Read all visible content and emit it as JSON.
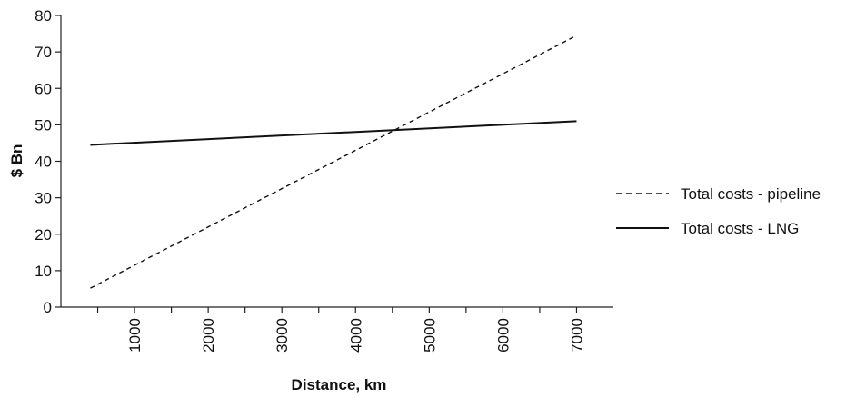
{
  "chart_data": {
    "type": "line",
    "xlabel": "Distance, km",
    "ylabel": "$ Bn",
    "xlim": [
      400,
      7000
    ],
    "ylim": [
      0,
      80
    ],
    "xticks": [
      1000,
      2000,
      3000,
      4000,
      5000,
      6000,
      7000
    ],
    "xtick_labels": [
      "1000",
      "2000",
      "3000",
      "4000",
      "5000",
      "6000",
      "7000"
    ],
    "yticks": [
      0,
      10,
      20,
      30,
      40,
      50,
      60,
      70,
      80
    ],
    "ytick_labels": [
      "0",
      "10",
      "20",
      "30",
      "40",
      "50",
      "60",
      "70",
      "80"
    ],
    "grid": false,
    "legend_position": "right",
    "series": [
      {
        "name": "Total costs - pipeline",
        "style": "dashed",
        "color": "#111111",
        "x": [
          400,
          7000
        ],
        "y": [
          5.2,
          74.5
        ]
      },
      {
        "name": "Total costs - LNG",
        "style": "solid",
        "color": "#111111",
        "x": [
          400,
          7000
        ],
        "y": [
          44.5,
          51
        ]
      }
    ]
  }
}
